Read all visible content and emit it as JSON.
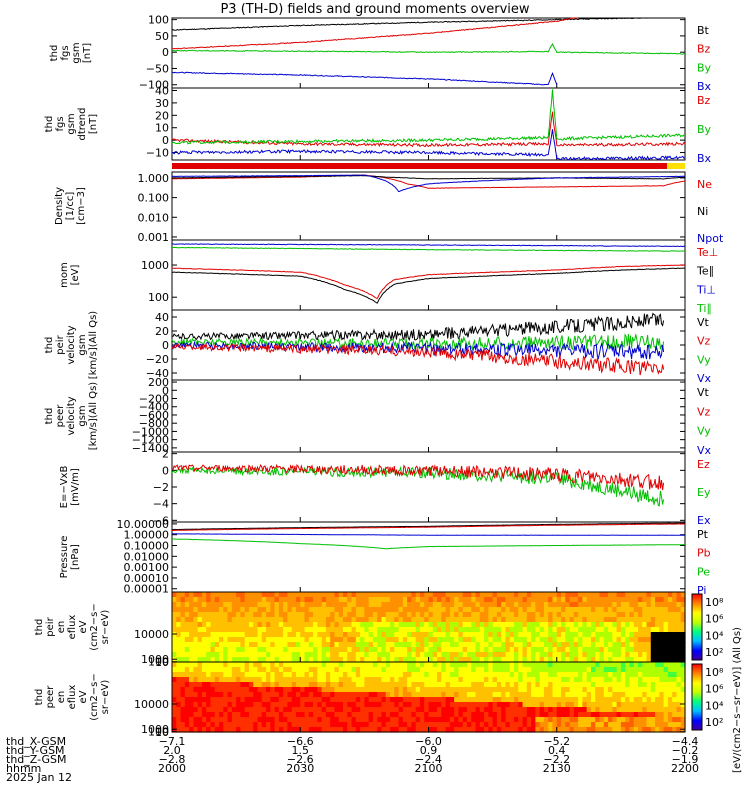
{
  "title": "P3 (TH-D) fields and ground moments overview",
  "colors": {
    "black": "#000000",
    "red": "#e00000",
    "green": "#00c000",
    "blue": "#0000d0",
    "yellow": "#ffe000"
  },
  "chart_data": [
    {
      "id": "p1",
      "type": "line",
      "ylabel": [
        "thd",
        "fgs",
        "gsm",
        "[nT]"
      ],
      "yticks": [
        "100",
        "50",
        "0",
        "−50",
        "−100"
      ],
      "ylim": [
        -110,
        105
      ],
      "legend": [
        {
          "name": "Bt",
          "color": "black"
        },
        {
          "name": "Bz",
          "color": "red"
        },
        {
          "name": "By",
          "color": "green"
        },
        {
          "name": "Bx",
          "color": "blue"
        }
      ],
      "series": [
        {
          "name": "Bt",
          "color": "black",
          "x": [
            2000,
            2030,
            2100,
            2130,
            2200
          ],
          "y": [
            68,
            82,
            92,
            100,
            108
          ]
        },
        {
          "name": "Bz",
          "color": "red",
          "x": [
            2000,
            2030,
            2100,
            2130,
            2135
          ],
          "y": [
            10,
            30,
            58,
            95,
            108
          ]
        },
        {
          "name": "By",
          "color": "green",
          "x": [
            2000,
            2030,
            2100,
            2128,
            2129,
            2130,
            2200
          ],
          "y": [
            5,
            3,
            0,
            2,
            25,
            0,
            -5
          ]
        },
        {
          "name": "Bx",
          "color": "blue",
          "x": [
            2000,
            2030,
            2100,
            2128,
            2129,
            2130
          ],
          "y": [
            -62,
            -70,
            -82,
            -100,
            -65,
            -100
          ]
        }
      ]
    },
    {
      "id": "p2",
      "type": "line",
      "ylabel": [
        "thd",
        "fgs",
        "gsm",
        "dtrend",
        "[nT]"
      ],
      "yticks": [
        "40",
        "30",
        "20",
        "10",
        "0",
        "−10"
      ],
      "ylim": [
        -16,
        42
      ],
      "legend": [
        {
          "name": "Bz",
          "color": "red"
        },
        {
          "name": "By",
          "color": "green"
        },
        {
          "name": "Bx",
          "color": "blue"
        }
      ],
      "series": [
        {
          "name": "Bz",
          "color": "red",
          "x": [
            2000,
            2030,
            2100,
            2128,
            2129,
            2130,
            2200
          ],
          "y": [
            0,
            -3,
            -4,
            -3,
            22,
            -4,
            -3
          ]
        },
        {
          "name": "By",
          "color": "green",
          "x": [
            2000,
            2030,
            2100,
            2128,
            2129,
            2130,
            2200
          ],
          "y": [
            -2,
            -1,
            0,
            2,
            40,
            1,
            4
          ]
        },
        {
          "name": "Bx",
          "color": "blue",
          "x": [
            2000,
            2030,
            2100,
            2128,
            2129,
            2130,
            2200
          ],
          "y": [
            -10,
            -9,
            -10,
            -12,
            8,
            -15,
            -14
          ]
        }
      ]
    },
    {
      "id": "p4",
      "type": "line",
      "yscale": "log",
      "ylabel": [
        "Density",
        "[1/cc]",
        "[cm−3]"
      ],
      "yticks": [
        "1.000",
        "0.100",
        "0.010",
        "0.001"
      ],
      "ylim": [
        0.0007,
        2
      ],
      "legend": [
        {
          "name": "Ne",
          "color": "red"
        },
        {
          "name": "Ni",
          "color": "black"
        },
        {
          "name": "Npot",
          "color": "blue"
        }
      ],
      "series": [
        {
          "name": "Ne",
          "color": "red",
          "x": [
            2000,
            2030,
            2045,
            2050,
            2055,
            2100,
            2130,
            2155,
            2200
          ],
          "y": [
            0.9,
            1.1,
            1.4,
            1.0,
            0.5,
            0.3,
            0.35,
            0.4,
            0.7
          ]
        },
        {
          "name": "Ni",
          "color": "black",
          "x": [
            2000,
            2030,
            2045,
            2050,
            2100,
            2130,
            2155,
            2200
          ],
          "y": [
            1.0,
            1.2,
            1.3,
            1.1,
            0.9,
            1.0,
            0.9,
            1.1
          ]
        },
        {
          "name": "Npot",
          "color": "blue",
          "x": [
            2000,
            2030,
            2045,
            2050,
            2053,
            2100,
            2130,
            2200
          ],
          "y": [
            1.2,
            1.3,
            1.4,
            0.7,
            0.2,
            0.5,
            1.0,
            1.2
          ]
        }
      ]
    },
    {
      "id": "p5",
      "type": "line",
      "yscale": "log",
      "ylabel": [
        "mom",
        "[eV]"
      ],
      "yticks": [
        "1000",
        "100"
      ],
      "ylim": [
        40,
        6000
      ],
      "legend": [
        {
          "name": "Te⊥",
          "color": "red"
        },
        {
          "name": "Te∥",
          "color": "black"
        },
        {
          "name": "Ti⊥",
          "color": "blue"
        },
        {
          "name": "Ti∥",
          "color": "green"
        }
      ],
      "series": [
        {
          "name": "Ti⊥",
          "color": "blue",
          "x": [
            2000,
            2100,
            2200
          ],
          "y": [
            4500,
            4200,
            3800
          ]
        },
        {
          "name": "Ti∥",
          "color": "green",
          "x": [
            2000,
            2100,
            2200
          ],
          "y": [
            3500,
            3000,
            2700
          ]
        },
        {
          "name": "Te⊥",
          "color": "red",
          "x": [
            2000,
            2030,
            2040,
            2048,
            2052,
            2100,
            2130,
            2145,
            2200
          ],
          "y": [
            800,
            600,
            250,
            90,
            350,
            500,
            700,
            900,
            1000
          ]
        },
        {
          "name": "Te∥",
          "color": "black",
          "x": [
            2000,
            2030,
            2040,
            2048,
            2052,
            2100,
            2130,
            2145,
            2200
          ],
          "y": [
            600,
            450,
            180,
            65,
            250,
            380,
            550,
            700,
            800
          ]
        }
      ]
    },
    {
      "id": "p6",
      "type": "line",
      "ylabel": [
        "thd",
        "peir",
        "velocity",
        "gsm",
        "[km/s](All Qs)"
      ],
      "yticks": [
        "40",
        "20",
        "0",
        "−20",
        "−40"
      ],
      "ylim": [
        -50,
        50
      ],
      "legend": [
        {
          "name": "Vt",
          "color": "black"
        },
        {
          "name": "Vz",
          "color": "red"
        },
        {
          "name": "Vy",
          "color": "green"
        },
        {
          "name": "Vx",
          "color": "blue"
        }
      ],
      "series": [
        {
          "name": "Vt",
          "color": "black",
          "x": [
            2000,
            2100,
            2155
          ],
          "y": [
            12,
            15,
            35
          ]
        },
        {
          "name": "Vy",
          "color": "green",
          "x": [
            2000,
            2100,
            2155
          ],
          "y": [
            5,
            2,
            5
          ]
        },
        {
          "name": "Vx",
          "color": "blue",
          "x": [
            2000,
            2100,
            2155
          ],
          "y": [
            0,
            -5,
            -10
          ]
        },
        {
          "name": "Vz",
          "color": "red",
          "x": [
            2000,
            2100,
            2155
          ],
          "y": [
            -2,
            -10,
            -35
          ]
        }
      ]
    },
    {
      "id": "p7",
      "type": "line",
      "ylabel": [
        "thd",
        "peer",
        "velocity",
        "gsm",
        "[km/s](All Qs)"
      ],
      "yticks": [
        "200",
        "0",
        "−200",
        "−400",
        "−600",
        "−800",
        "−1000",
        "−1200",
        "−1400"
      ],
      "ylim": [
        -1500,
        250
      ],
      "legend": [
        {
          "name": "Vt",
          "color": "black"
        },
        {
          "name": "Vz",
          "color": "red"
        },
        {
          "name": "Vy",
          "color": "green"
        },
        {
          "name": "Vx",
          "color": "blue"
        }
      ],
      "series": []
    },
    {
      "id": "p8",
      "type": "line",
      "ylabel": [
        "E=−VxB",
        "[mV/m]"
      ],
      "yticks": [
        "2",
        "0",
        "−2",
        "−4",
        "−6"
      ],
      "ylim": [
        -6.2,
        2.2
      ],
      "legend": [
        {
          "name": "Ez",
          "color": "red"
        },
        {
          "name": "Ey",
          "color": "green"
        },
        {
          "name": "Ex",
          "color": "blue"
        }
      ],
      "series": [
        {
          "name": "Ey",
          "color": "green",
          "x": [
            2000,
            2100,
            2130,
            2155
          ],
          "y": [
            0,
            -0.3,
            -1.0,
            -3.5
          ]
        },
        {
          "name": "Ez",
          "color": "red",
          "x": [
            2000,
            2100,
            2130,
            2155
          ],
          "y": [
            0.3,
            0,
            -0.5,
            -1.5
          ]
        }
      ]
    },
    {
      "id": "p9",
      "type": "line",
      "yscale": "log",
      "ylabel": [
        "Pressure",
        "[nPa]"
      ],
      "yticks": [
        "10.00000",
        "1.00000",
        "0.10000",
        "0.01000",
        "0.00100",
        "0.00010",
        "0.00001"
      ],
      "ylim": [
        5e-06,
        15
      ],
      "legend": [
        {
          "name": "Pt",
          "color": "black"
        },
        {
          "name": "Pb",
          "color": "red"
        },
        {
          "name": "Pe",
          "color": "green"
        },
        {
          "name": "Pi",
          "color": "blue"
        }
      ],
      "series": [
        {
          "name": "Pt",
          "color": "black",
          "x": [
            2000,
            2100,
            2200
          ],
          "y": [
            3,
            6,
            12
          ]
        },
        {
          "name": "Pb",
          "color": "red",
          "x": [
            2000,
            2100,
            2200
          ],
          "y": [
            2.5,
            5,
            10
          ]
        },
        {
          "name": "Pi",
          "color": "blue",
          "x": [
            2000,
            2100,
            2200
          ],
          "y": [
            1.2,
            0.9,
            0.9
          ]
        },
        {
          "name": "Pe",
          "color": "green",
          "x": [
            2000,
            2030,
            2050,
            2100,
            2130,
            2200
          ],
          "y": [
            0.4,
            0.15,
            0.05,
            0.08,
            0.1,
            0.12
          ]
        }
      ]
    },
    {
      "id": "p10",
      "type": "heatmap",
      "ylabel": [
        "thd",
        "peir",
        "en",
        "eflux",
        "eV",
        "(cm2−s−",
        "sr−eV)"
      ],
      "yticks": [
        "10000",
        "1000",
        "100",
        "10"
      ],
      "ylim": [
        5,
        25000
      ],
      "colorbar": {
        "ticks": [
          "10⁸",
          "10⁶",
          "10⁴",
          "10²"
        ],
        "label": "[eV/(cm2−s−sr−eV)] (All Qs)"
      }
    },
    {
      "id": "p11",
      "type": "heatmap",
      "ylabel": [
        "thd",
        "peer",
        "en",
        "eflux",
        "eV",
        "(cm2−s−",
        "sr−eV)"
      ],
      "yticks": [
        "10000",
        "1000",
        "100",
        "10"
      ],
      "ylim": [
        5,
        25000
      ],
      "colorbar": {
        "ticks": [
          "10⁸",
          "10⁶",
          "10⁴",
          "10²"
        ],
        "label": "[eV/(cm2−s−sr−eV)]"
      }
    }
  ],
  "bottom": {
    "rows": [
      {
        "label": "thd_X-GSM",
        "values": [
          "−7.1",
          "−6.6",
          "−6.0",
          "−5.2",
          "−4.4"
        ]
      },
      {
        "label": "thd_Y-GSM",
        "values": [
          "2.0",
          "1.5",
          "0.9",
          "0.4",
          "−0.2"
        ]
      },
      {
        "label": "thd_Z-GSM",
        "values": [
          "−2.8",
          "−2.6",
          "−2.4",
          "−2.2",
          "−1.9"
        ]
      },
      {
        "label": "hhmm",
        "values": [
          "2000",
          "2030",
          "2100",
          "2130",
          "2200"
        ]
      }
    ],
    "date": "2025 Jan 12"
  }
}
